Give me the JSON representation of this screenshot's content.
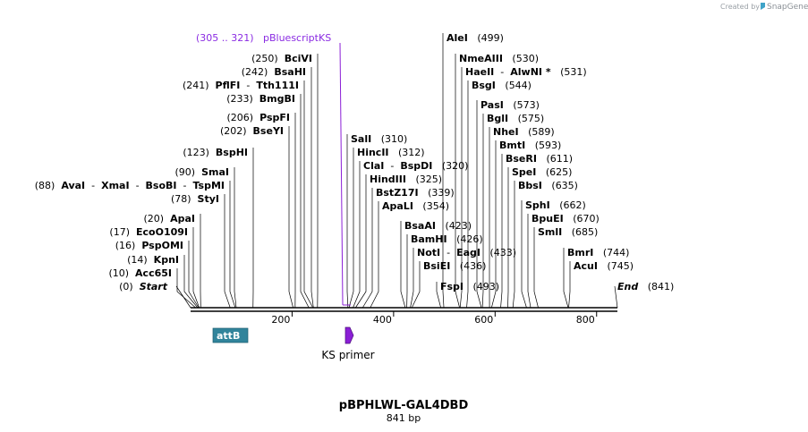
{
  "credit": {
    "prefix": "Created by",
    "brand": "SnapGene"
  },
  "map": {
    "title": "pBPHLWL-GAL4DBD",
    "length_label": "841 bp",
    "length": 841,
    "ruler_ticks": [
      200,
      400,
      600,
      800
    ]
  },
  "features": [
    {
      "name": "attB",
      "start": 45,
      "end": 110,
      "color": "#31849b"
    }
  ],
  "primers": [
    {
      "name": "KS primer",
      "start": 305,
      "end": 321,
      "color": "#8b1fd6"
    }
  ],
  "primer_binding": {
    "range": "(305 .. 321)",
    "name": "pBluescriptKS",
    "pos": 305
  },
  "sites": [
    {
      "id": "start",
      "pos": 0,
      "pos_label": "(0)",
      "names": [
        "Start"
      ],
      "italic": true
    },
    {
      "id": "acc65i",
      "pos": 10,
      "pos_label": "(10)",
      "names": [
        "Acc65I"
      ]
    },
    {
      "id": "kpni",
      "pos": 14,
      "pos_label": "(14)",
      "names": [
        "KpnI"
      ]
    },
    {
      "id": "pspomi",
      "pos": 16,
      "pos_label": "(16)",
      "names": [
        "PspOMI"
      ]
    },
    {
      "id": "ecoo109i",
      "pos": 17,
      "pos_label": "(17)",
      "names": [
        "EcoO109I"
      ]
    },
    {
      "id": "apai",
      "pos": 20,
      "pos_label": "(20)",
      "names": [
        "ApaI"
      ]
    },
    {
      "id": "styi",
      "pos": 78,
      "pos_label": "(78)",
      "names": [
        "StyI"
      ]
    },
    {
      "id": "avai",
      "pos": 88,
      "pos_label": "(88)",
      "names": [
        "AvaI",
        "XmaI",
        "BsoBI",
        "TspMI"
      ]
    },
    {
      "id": "smai",
      "pos": 90,
      "pos_label": "(90)",
      "names": [
        "SmaI"
      ]
    },
    {
      "id": "bsphi",
      "pos": 123,
      "pos_label": "(123)",
      "names": [
        "BspHI"
      ]
    },
    {
      "id": "bseyi",
      "pos": 202,
      "pos_label": "(202)",
      "names": [
        "BseYI"
      ]
    },
    {
      "id": "pspfi",
      "pos": 206,
      "pos_label": "(206)",
      "names": [
        "PspFI"
      ]
    },
    {
      "id": "bmgbi",
      "pos": 233,
      "pos_label": "(233)",
      "names": [
        "BmgBI"
      ]
    },
    {
      "id": "pfifi",
      "pos": 241,
      "pos_label": "(241)",
      "names": [
        "PflFI",
        "Tth111I"
      ]
    },
    {
      "id": "bsahi",
      "pos": 242,
      "pos_label": "(242)",
      "names": [
        "BsaHI"
      ]
    },
    {
      "id": "bcivi",
      "pos": 250,
      "pos_label": "(250)",
      "names": [
        "BciVI"
      ]
    },
    {
      "id": "sali",
      "pos": 310,
      "pos_label": "(310)",
      "names": [
        "SalI"
      ]
    },
    {
      "id": "hincii",
      "pos": 312,
      "pos_label": "(312)",
      "names": [
        "HincII"
      ]
    },
    {
      "id": "clai",
      "pos": 320,
      "pos_label": "(320)",
      "names": [
        "ClaI",
        "BspDI"
      ]
    },
    {
      "id": "hindiii",
      "pos": 325,
      "pos_label": "(325)",
      "names": [
        "HindIII"
      ]
    },
    {
      "id": "bstz17i",
      "pos": 339,
      "pos_label": "(339)",
      "names": [
        "BstZ17I"
      ]
    },
    {
      "id": "apali",
      "pos": 354,
      "pos_label": "(354)",
      "names": [
        "ApaLI"
      ]
    },
    {
      "id": "bsaai",
      "pos": 423,
      "pos_label": "(423)",
      "names": [
        "BsaAI"
      ]
    },
    {
      "id": "bamhi",
      "pos": 426,
      "pos_label": "(426)",
      "names": [
        "BamHI"
      ]
    },
    {
      "id": "noti",
      "pos": 433,
      "pos_label": "(433)",
      "names": [
        "NotI",
        "EagI"
      ]
    },
    {
      "id": "bsiei",
      "pos": 436,
      "pos_label": "(436)",
      "names": [
        "BsiEI"
      ]
    },
    {
      "id": "fspi",
      "pos": 493,
      "pos_label": "(493)",
      "names": [
        "FspI"
      ]
    },
    {
      "id": "alei",
      "pos": 499,
      "pos_label": "(499)",
      "names": [
        "AleI"
      ]
    },
    {
      "id": "nmeaiii",
      "pos": 530,
      "pos_label": "(530)",
      "names": [
        "NmeAIII"
      ]
    },
    {
      "id": "haeii",
      "pos": 531,
      "pos_label": "(531)",
      "names": [
        "HaeII",
        "AlwNI *"
      ]
    },
    {
      "id": "bsgi",
      "pos": 544,
      "pos_label": "(544)",
      "names": [
        "BsgI"
      ]
    },
    {
      "id": "pasi",
      "pos": 573,
      "pos_label": "(573)",
      "names": [
        "PasI"
      ]
    },
    {
      "id": "bgli",
      "pos": 575,
      "pos_label": "(575)",
      "names": [
        "BglI"
      ]
    },
    {
      "id": "nhei",
      "pos": 589,
      "pos_label": "(589)",
      "names": [
        "NheI"
      ]
    },
    {
      "id": "bmti",
      "pos": 593,
      "pos_label": "(593)",
      "names": [
        "BmtI"
      ]
    },
    {
      "id": "bseri",
      "pos": 611,
      "pos_label": "(611)",
      "names": [
        "BseRI"
      ]
    },
    {
      "id": "spei",
      "pos": 625,
      "pos_label": "(625)",
      "names": [
        "SpeI"
      ]
    },
    {
      "id": "bbsi",
      "pos": 635,
      "pos_label": "(635)",
      "names": [
        "BbsI"
      ]
    },
    {
      "id": "sphi",
      "pos": 662,
      "pos_label": "(662)",
      "names": [
        "SphI"
      ]
    },
    {
      "id": "bpuei",
      "pos": 670,
      "pos_label": "(670)",
      "names": [
        "BpuEI"
      ]
    },
    {
      "id": "smli",
      "pos": 685,
      "pos_label": "(685)",
      "names": [
        "SmlI"
      ]
    },
    {
      "id": "bmri",
      "pos": 744,
      "pos_label": "(744)",
      "names": [
        "BmrI"
      ]
    },
    {
      "id": "acui",
      "pos": 745,
      "pos_label": "(745)",
      "names": [
        "AcuI"
      ]
    },
    {
      "id": "end",
      "pos": 841,
      "pos_label": "(841)",
      "names": [
        "End"
      ],
      "italic": true
    }
  ]
}
